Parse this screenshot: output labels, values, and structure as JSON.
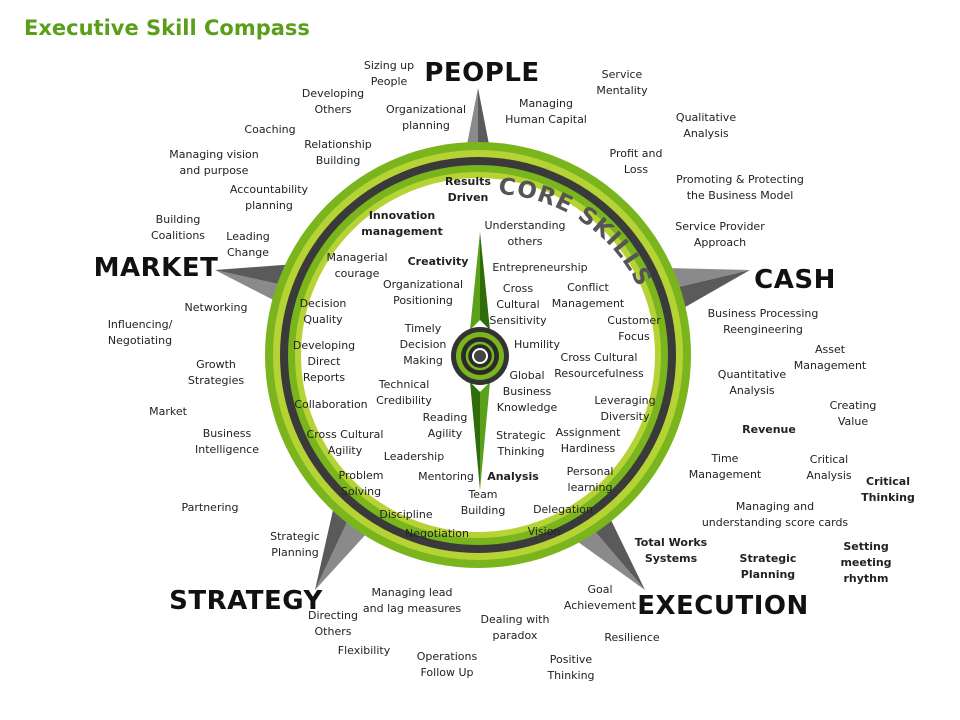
{
  "title": "Executive Skill Compass",
  "core_label": "CORE SKILLS",
  "colors": {
    "green": "#7ab51d",
    "light_green": "#b5d334",
    "dark_ring": "#3a3a3a",
    "title_green": "#5a9e1a"
  },
  "directions": {
    "people": "PEOPLE",
    "market": "MARKET",
    "cash": "CASH",
    "strategy": "STRATEGY",
    "execution": "EXECUTION"
  },
  "outer_skills": [
    "Sizing up\nPeople",
    "Developing\nOthers",
    "Coaching",
    "Managing vision\nand purpose",
    "Building\nCoalitions",
    "Networking",
    "Influencing/\nNegotiating",
    "Growth\nStrategies",
    "Market",
    "Business\nIntelligence",
    "Partnering",
    "Strategic\nPlanning",
    "Directing\nOthers",
    "Flexibility",
    "Managing lead\nand lag measures",
    "Operations\nFollow Up",
    "Dealing with\nparadox",
    "Positive\nThinking",
    "Goal\nAchievement",
    "Resilience",
    "Total Works\nSystems",
    "Strategic\nPlanning",
    "Setting meeting\nrhythm",
    "Managing and\nunderstanding score cards",
    "Critical\nThinking",
    "Critical\nAnalysis",
    "Time\nManagement",
    "Revenue",
    "Creating\nValue",
    "Quantitative\nAnalysis",
    "Asset\nManagement",
    "Business Processing\nReengineering",
    "Service Provider\nApproach",
    "Promoting & Protecting\nthe Business Model",
    "Profit and\nLoss",
    "Qualitative\nAnalysis",
    "Service\nMentality",
    "Managing\nHuman Capital",
    "Organizational\nplanning",
    "Relationship\nBuilding",
    "Accountability\nplanning",
    "Leading\nChange"
  ],
  "core_skills": [
    "Results\nDriven",
    "Innovation\nmanagement",
    "Understanding\nothers",
    "Entrepreneurship",
    "Creativity",
    "Managerial\ncourage",
    "Organizational\nPositioning",
    "Cross\nCultural\nSensitivity",
    "Conflict\nManagement",
    "Decision\nQuality",
    "Customer\nFocus",
    "Timely\nDecision\nMaking",
    "Developing\nDirect\nReports",
    "Humility",
    "Cross Cultural\nResourcefulness",
    "Global\nBusiness\nKnowledge",
    "Technical\nCredibility",
    "Collaboration",
    "Leveraging\nDiversity",
    "Reading\nAgility",
    "Assignment\nHardiness",
    "Cross Cultural\nAgility",
    "Strategic\nThinking",
    "Leadership",
    "Personal\nlearning",
    "Problem\nSolving",
    "Mentoring",
    "Analysis",
    "Team\nBuilding",
    "Discipline",
    "Delegation",
    "Negotiation",
    "Vision"
  ]
}
